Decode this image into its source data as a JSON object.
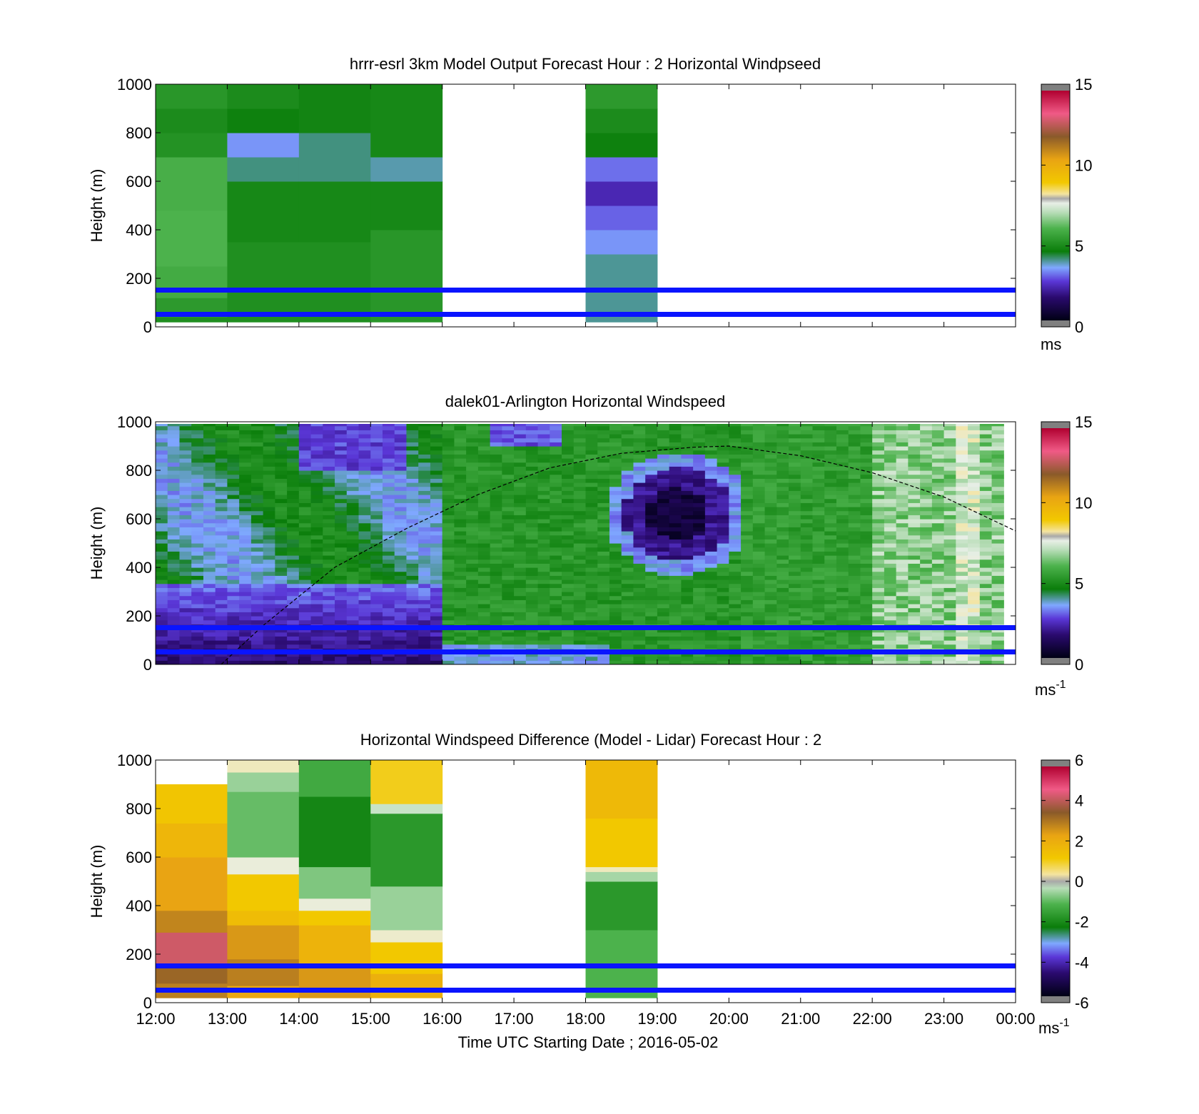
{
  "figure": {
    "xlabel": "Time UTC  Starting Date ; 2016-05-02",
    "x_ticks": [
      "12:00",
      "13:00",
      "14:00",
      "15:00",
      "16:00",
      "17:00",
      "18:00",
      "19:00",
      "20:00",
      "21:00",
      "22:00",
      "23:00",
      "00:00"
    ],
    "y_ticks": [
      "0",
      "200",
      "400",
      "600",
      "800",
      "1000"
    ],
    "ylabel": "Height (m)"
  },
  "chart_data": [
    {
      "type": "heatmap",
      "title": "hrrr-esrl 3km Model Output   Forecast Hour : 2 Horizontal Windpseed",
      "ylabel": "Height (m)",
      "xlim": [
        "12:00",
        "00:00"
      ],
      "ylim": [
        0,
        1000
      ],
      "colorbar": {
        "ticks": [
          "0",
          "5",
          "10",
          "15"
        ],
        "range": [
          0,
          15
        ],
        "unit": "ms"
      },
      "reference_lines_m": [
        150,
        50
      ],
      "columns": [
        {
          "start": "12:00",
          "end": "13:00",
          "segments": [
            {
              "y0": 20,
              "y1": 40,
              "v": 5.0
            },
            {
              "y0": 40,
              "y1": 120,
              "v": 5.3
            },
            {
              "y0": 120,
              "y1": 250,
              "v": 5.8
            },
            {
              "y0": 250,
              "y1": 480,
              "v": 6.0
            },
            {
              "y0": 480,
              "y1": 700,
              "v": 5.9
            },
            {
              "y0": 700,
              "y1": 800,
              "v": 5.1
            },
            {
              "y0": 800,
              "y1": 900,
              "v": 4.9
            },
            {
              "y0": 900,
              "y1": 1000,
              "v": 5.2
            }
          ]
        },
        {
          "start": "13:00",
          "end": "14:00",
          "segments": [
            {
              "y0": 20,
              "y1": 350,
              "v": 5.0
            },
            {
              "y0": 350,
              "y1": 600,
              "v": 4.8
            },
            {
              "y0": 600,
              "y1": 700,
              "v": 4.0
            },
            {
              "y0": 700,
              "y1": 800,
              "v": 3.3
            },
            {
              "y0": 800,
              "y1": 900,
              "v": 4.6
            },
            {
              "y0": 900,
              "y1": 1000,
              "v": 4.9
            }
          ]
        },
        {
          "start": "14:00",
          "end": "15:00",
          "segments": [
            {
              "y0": 20,
              "y1": 350,
              "v": 5.0
            },
            {
              "y0": 350,
              "y1": 600,
              "v": 4.8
            },
            {
              "y0": 600,
              "y1": 800,
              "v": 4.0
            },
            {
              "y0": 800,
              "y1": 1000,
              "v": 4.7
            }
          ]
        },
        {
          "start": "15:00",
          "end": "16:00",
          "segments": [
            {
              "y0": 20,
              "y1": 400,
              "v": 5.2
            },
            {
              "y0": 400,
              "y1": 600,
              "v": 4.8
            },
            {
              "y0": 600,
              "y1": 700,
              "v": 3.8
            },
            {
              "y0": 700,
              "y1": 1000,
              "v": 4.8
            }
          ]
        },
        {
          "start": "18:00",
          "end": "19:00",
          "segments": [
            {
              "y0": 20,
              "y1": 300,
              "v": 3.9
            },
            {
              "y0": 300,
              "y1": 400,
              "v": 3.3
            },
            {
              "y0": 400,
              "y1": 500,
              "v": 2.9
            },
            {
              "y0": 500,
              "y1": 600,
              "v": 2.2
            },
            {
              "y0": 600,
              "y1": 700,
              "v": 3.0
            },
            {
              "y0": 700,
              "y1": 800,
              "v": 4.6
            },
            {
              "y0": 800,
              "y1": 900,
              "v": 4.9
            },
            {
              "y0": 900,
              "y1": 1000,
              "v": 5.3
            }
          ]
        }
      ]
    },
    {
      "type": "heatmap",
      "title": "dalek01-Arlington  Horizontal Windspeed",
      "ylabel": "Height (m)",
      "xlim": [
        "12:00",
        "00:00"
      ],
      "ylim": [
        0,
        1000
      ],
      "colorbar": {
        "ticks": [
          "0",
          "5",
          "10",
          "15"
        ],
        "range": [
          0,
          15
        ],
        "unit": "ms",
        "unit_sup": "-1"
      },
      "reference_lines_m": [
        155,
        50
      ],
      "data_end": "23:50",
      "profile_overlay_m": [
        {
          "t": "12:55",
          "z": 0
        },
        {
          "t": "13:30",
          "z": 160
        },
        {
          "t": "14:30",
          "z": 400
        },
        {
          "t": "15:30",
          "z": 560
        },
        {
          "t": "16:30",
          "z": 700
        },
        {
          "t": "17:30",
          "z": 810
        },
        {
          "t": "18:30",
          "z": 870
        },
        {
          "t": "19:30",
          "z": 895
        },
        {
          "t": "20:00",
          "z": 900
        },
        {
          "t": "21:00",
          "z": 860
        },
        {
          "t": "22:00",
          "z": 790
        },
        {
          "t": "23:00",
          "z": 690
        },
        {
          "t": "00:00",
          "z": 550
        }
      ]
    },
    {
      "type": "heatmap",
      "title": "Horizontal Windspeed Difference (Model - Lidar) Forecast Hour : 2",
      "ylabel": "Height (m)",
      "xlabel": "Time UTC  Starting Date ; 2016-05-02",
      "xlim": [
        "12:00",
        "00:00"
      ],
      "ylim": [
        0,
        1000
      ],
      "colorbar": {
        "ticks": [
          "-6",
          "-4",
          "-2",
          "0",
          "2",
          "4",
          "6"
        ],
        "range": [
          -6,
          6
        ],
        "unit": "ms",
        "unit_sup": "-1"
      },
      "reference_lines_m": [
        155,
        50
      ],
      "columns": [
        {
          "start": "12:00",
          "end": "13:00",
          "segments": [
            {
              "y0": 20,
              "y1": 80,
              "v": 3.0
            },
            {
              "y0": 80,
              "y1": 160,
              "v": 3.4
            },
            {
              "y0": 160,
              "y1": 290,
              "v": 4.4
            },
            {
              "y0": 290,
              "y1": 380,
              "v": 2.9
            },
            {
              "y0": 380,
              "y1": 600,
              "v": 2.4
            },
            {
              "y0": 600,
              "y1": 740,
              "v": 1.8
            },
            {
              "y0": 740,
              "y1": 900,
              "v": 1.3
            }
          ]
        },
        {
          "start": "13:00",
          "end": "14:00",
          "segments": [
            {
              "y0": 20,
              "y1": 70,
              "v": 2.3
            },
            {
              "y0": 70,
              "y1": 180,
              "v": 3.0
            },
            {
              "y0": 180,
              "y1": 320,
              "v": 2.6
            },
            {
              "y0": 320,
              "y1": 380,
              "v": 1.6
            },
            {
              "y0": 380,
              "y1": 530,
              "v": 1.2
            },
            {
              "y0": 530,
              "y1": 600,
              "v": 0.2
            },
            {
              "y0": 600,
              "y1": 870,
              "v": -1.0
            },
            {
              "y0": 870,
              "y1": 950,
              "v": -0.6
            },
            {
              "y0": 950,
              "y1": 1000,
              "v": 0.4
            }
          ]
        },
        {
          "start": "14:00",
          "end": "15:00",
          "segments": [
            {
              "y0": 20,
              "y1": 150,
              "v": 2.6
            },
            {
              "y0": 150,
              "y1": 320,
              "v": 1.9
            },
            {
              "y0": 320,
              "y1": 380,
              "v": 1.2
            },
            {
              "y0": 380,
              "y1": 430,
              "v": 0.2
            },
            {
              "y0": 430,
              "y1": 560,
              "v": -0.8
            },
            {
              "y0": 560,
              "y1": 850,
              "v": -2.2
            },
            {
              "y0": 850,
              "y1": 1000,
              "v": -1.4
            }
          ]
        },
        {
          "start": "15:00",
          "end": "16:00",
          "segments": [
            {
              "y0": 20,
              "y1": 120,
              "v": 2.0
            },
            {
              "y0": 120,
              "y1": 250,
              "v": 1.2
            },
            {
              "y0": 250,
              "y1": 300,
              "v": 0.3
            },
            {
              "y0": 300,
              "y1": 480,
              "v": -0.6
            },
            {
              "y0": 480,
              "y1": 780,
              "v": -1.8
            },
            {
              "y0": 780,
              "y1": 820,
              "v": -0.2
            },
            {
              "y0": 820,
              "y1": 1000,
              "v": 1.1
            }
          ]
        },
        {
          "start": "18:00",
          "end": "19:00",
          "segments": [
            {
              "y0": 20,
              "y1": 300,
              "v": -1.2
            },
            {
              "y0": 300,
              "y1": 500,
              "v": -1.8
            },
            {
              "y0": 500,
              "y1": 540,
              "v": -0.5
            },
            {
              "y0": 540,
              "y1": 560,
              "v": 0.4
            },
            {
              "y0": 560,
              "y1": 760,
              "v": 1.2
            },
            {
              "y0": 760,
              "y1": 1000,
              "v": 1.7
            }
          ]
        }
      ]
    }
  ]
}
